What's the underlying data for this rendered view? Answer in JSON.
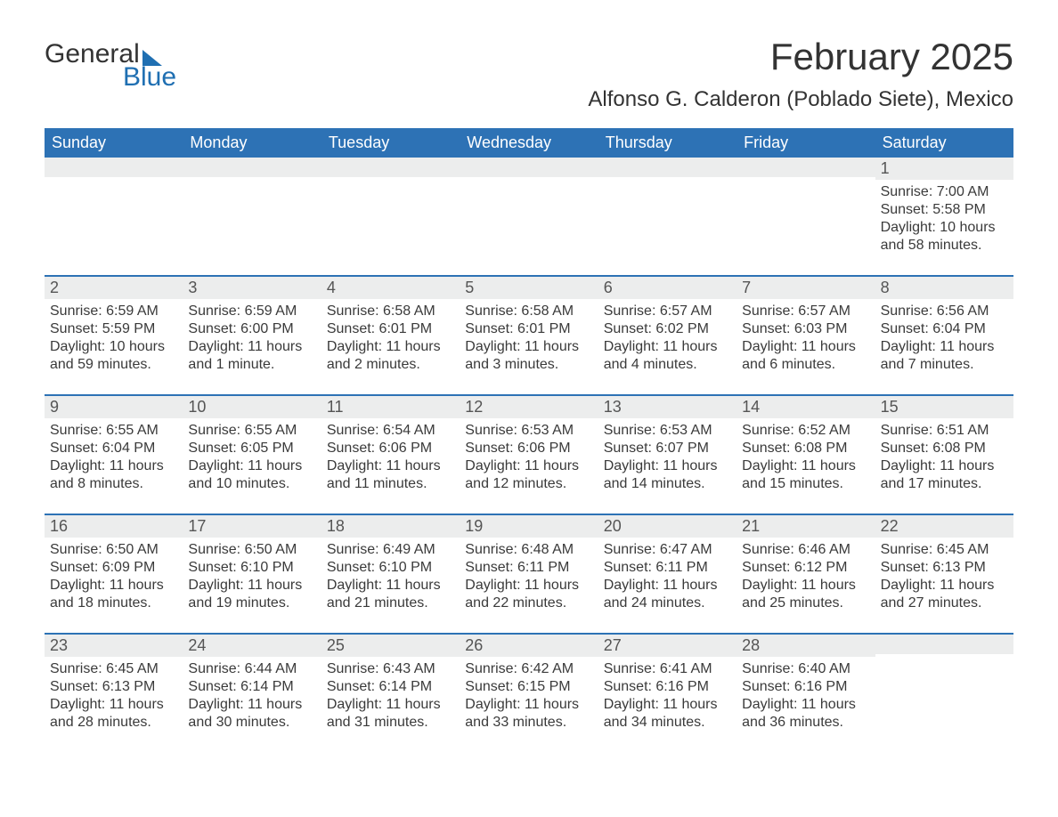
{
  "logo": {
    "word1": "General",
    "word2": "Blue"
  },
  "title": "February 2025",
  "location": "Alfonso G. Calderon (Poblado Siete), Mexico",
  "colors": {
    "header_bg": "#2d72b5",
    "header_text": "#ffffff",
    "rule": "#2d72b5",
    "daynum_bg": "#eceded",
    "text": "#333333",
    "logo_blue": "#1f6fb2"
  },
  "day_names": [
    "Sunday",
    "Monday",
    "Tuesday",
    "Wednesday",
    "Thursday",
    "Friday",
    "Saturday"
  ],
  "weeks": [
    [
      null,
      null,
      null,
      null,
      null,
      null,
      {
        "n": "1",
        "sunrise": "Sunrise: 7:00 AM",
        "sunset": "Sunset: 5:58 PM",
        "daylight": "Daylight: 10 hours and 58 minutes."
      }
    ],
    [
      {
        "n": "2",
        "sunrise": "Sunrise: 6:59 AM",
        "sunset": "Sunset: 5:59 PM",
        "daylight": "Daylight: 10 hours and 59 minutes."
      },
      {
        "n": "3",
        "sunrise": "Sunrise: 6:59 AM",
        "sunset": "Sunset: 6:00 PM",
        "daylight": "Daylight: 11 hours and 1 minute."
      },
      {
        "n": "4",
        "sunrise": "Sunrise: 6:58 AM",
        "sunset": "Sunset: 6:01 PM",
        "daylight": "Daylight: 11 hours and 2 minutes."
      },
      {
        "n": "5",
        "sunrise": "Sunrise: 6:58 AM",
        "sunset": "Sunset: 6:01 PM",
        "daylight": "Daylight: 11 hours and 3 minutes."
      },
      {
        "n": "6",
        "sunrise": "Sunrise: 6:57 AM",
        "sunset": "Sunset: 6:02 PM",
        "daylight": "Daylight: 11 hours and 4 minutes."
      },
      {
        "n": "7",
        "sunrise": "Sunrise: 6:57 AM",
        "sunset": "Sunset: 6:03 PM",
        "daylight": "Daylight: 11 hours and 6 minutes."
      },
      {
        "n": "8",
        "sunrise": "Sunrise: 6:56 AM",
        "sunset": "Sunset: 6:04 PM",
        "daylight": "Daylight: 11 hours and 7 minutes."
      }
    ],
    [
      {
        "n": "9",
        "sunrise": "Sunrise: 6:55 AM",
        "sunset": "Sunset: 6:04 PM",
        "daylight": "Daylight: 11 hours and 8 minutes."
      },
      {
        "n": "10",
        "sunrise": "Sunrise: 6:55 AM",
        "sunset": "Sunset: 6:05 PM",
        "daylight": "Daylight: 11 hours and 10 minutes."
      },
      {
        "n": "11",
        "sunrise": "Sunrise: 6:54 AM",
        "sunset": "Sunset: 6:06 PM",
        "daylight": "Daylight: 11 hours and 11 minutes."
      },
      {
        "n": "12",
        "sunrise": "Sunrise: 6:53 AM",
        "sunset": "Sunset: 6:06 PM",
        "daylight": "Daylight: 11 hours and 12 minutes."
      },
      {
        "n": "13",
        "sunrise": "Sunrise: 6:53 AM",
        "sunset": "Sunset: 6:07 PM",
        "daylight": "Daylight: 11 hours and 14 minutes."
      },
      {
        "n": "14",
        "sunrise": "Sunrise: 6:52 AM",
        "sunset": "Sunset: 6:08 PM",
        "daylight": "Daylight: 11 hours and 15 minutes."
      },
      {
        "n": "15",
        "sunrise": "Sunrise: 6:51 AM",
        "sunset": "Sunset: 6:08 PM",
        "daylight": "Daylight: 11 hours and 17 minutes."
      }
    ],
    [
      {
        "n": "16",
        "sunrise": "Sunrise: 6:50 AM",
        "sunset": "Sunset: 6:09 PM",
        "daylight": "Daylight: 11 hours and 18 minutes."
      },
      {
        "n": "17",
        "sunrise": "Sunrise: 6:50 AM",
        "sunset": "Sunset: 6:10 PM",
        "daylight": "Daylight: 11 hours and 19 minutes."
      },
      {
        "n": "18",
        "sunrise": "Sunrise: 6:49 AM",
        "sunset": "Sunset: 6:10 PM",
        "daylight": "Daylight: 11 hours and 21 minutes."
      },
      {
        "n": "19",
        "sunrise": "Sunrise: 6:48 AM",
        "sunset": "Sunset: 6:11 PM",
        "daylight": "Daylight: 11 hours and 22 minutes."
      },
      {
        "n": "20",
        "sunrise": "Sunrise: 6:47 AM",
        "sunset": "Sunset: 6:11 PM",
        "daylight": "Daylight: 11 hours and 24 minutes."
      },
      {
        "n": "21",
        "sunrise": "Sunrise: 6:46 AM",
        "sunset": "Sunset: 6:12 PM",
        "daylight": "Daylight: 11 hours and 25 minutes."
      },
      {
        "n": "22",
        "sunrise": "Sunrise: 6:45 AM",
        "sunset": "Sunset: 6:13 PM",
        "daylight": "Daylight: 11 hours and 27 minutes."
      }
    ],
    [
      {
        "n": "23",
        "sunrise": "Sunrise: 6:45 AM",
        "sunset": "Sunset: 6:13 PM",
        "daylight": "Daylight: 11 hours and 28 minutes."
      },
      {
        "n": "24",
        "sunrise": "Sunrise: 6:44 AM",
        "sunset": "Sunset: 6:14 PM",
        "daylight": "Daylight: 11 hours and 30 minutes."
      },
      {
        "n": "25",
        "sunrise": "Sunrise: 6:43 AM",
        "sunset": "Sunset: 6:14 PM",
        "daylight": "Daylight: 11 hours and 31 minutes."
      },
      {
        "n": "26",
        "sunrise": "Sunrise: 6:42 AM",
        "sunset": "Sunset: 6:15 PM",
        "daylight": "Daylight: 11 hours and 33 minutes."
      },
      {
        "n": "27",
        "sunrise": "Sunrise: 6:41 AM",
        "sunset": "Sunset: 6:16 PM",
        "daylight": "Daylight: 11 hours and 34 minutes."
      },
      {
        "n": "28",
        "sunrise": "Sunrise: 6:40 AM",
        "sunset": "Sunset: 6:16 PM",
        "daylight": "Daylight: 11 hours and 36 minutes."
      },
      null
    ]
  ]
}
